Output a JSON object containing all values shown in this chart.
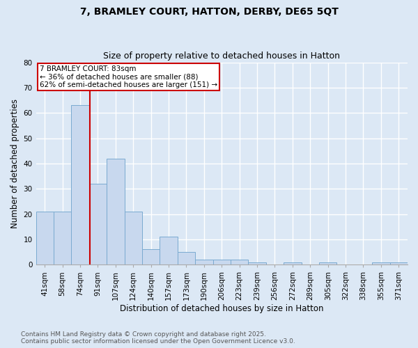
{
  "title_line1": "7, BRAMLEY COURT, HATTON, DERBY, DE65 5QT",
  "title_line2": "Size of property relative to detached houses in Hatton",
  "xlabel": "Distribution of detached houses by size in Hatton",
  "ylabel": "Number of detached properties",
  "bar_labels": [
    "41sqm",
    "58sqm",
    "74sqm",
    "91sqm",
    "107sqm",
    "124sqm",
    "140sqm",
    "157sqm",
    "173sqm",
    "190sqm",
    "206sqm",
    "223sqm",
    "239sqm",
    "256sqm",
    "272sqm",
    "289sqm",
    "305sqm",
    "322sqm",
    "338sqm",
    "355sqm",
    "371sqm"
  ],
  "bar_heights": [
    21,
    21,
    63,
    32,
    42,
    21,
    6,
    11,
    5,
    2,
    2,
    2,
    1,
    0,
    1,
    0,
    1,
    0,
    0,
    1,
    1
  ],
  "bar_color": "#c8d8ee",
  "bar_edge_color": "#7aaad0",
  "bar_width": 1.0,
  "red_line_x": 2.53,
  "annotation_text": "7 BRAMLEY COURT: 83sqm\n← 36% of detached houses are smaller (88)\n62% of semi-detached houses are larger (151) →",
  "annotation_box_color": "#ffffff",
  "annotation_box_edge": "#cc0000",
  "ylim": [
    0,
    80
  ],
  "yticks": [
    0,
    10,
    20,
    30,
    40,
    50,
    60,
    70,
    80
  ],
  "footer_line1": "Contains HM Land Registry data © Crown copyright and database right 2025.",
  "footer_line2": "Contains public sector information licensed under the Open Government Licence v3.0.",
  "bg_color": "#dce8f5",
  "plot_bg_color": "#dce8f5",
  "grid_color": "#ffffff",
  "red_line_color": "#cc0000",
  "title_fontsize": 10,
  "subtitle_fontsize": 9,
  "axis_label_fontsize": 8.5,
  "tick_fontsize": 7.5,
  "annotation_fontsize": 7.5,
  "footer_fontsize": 6.5
}
